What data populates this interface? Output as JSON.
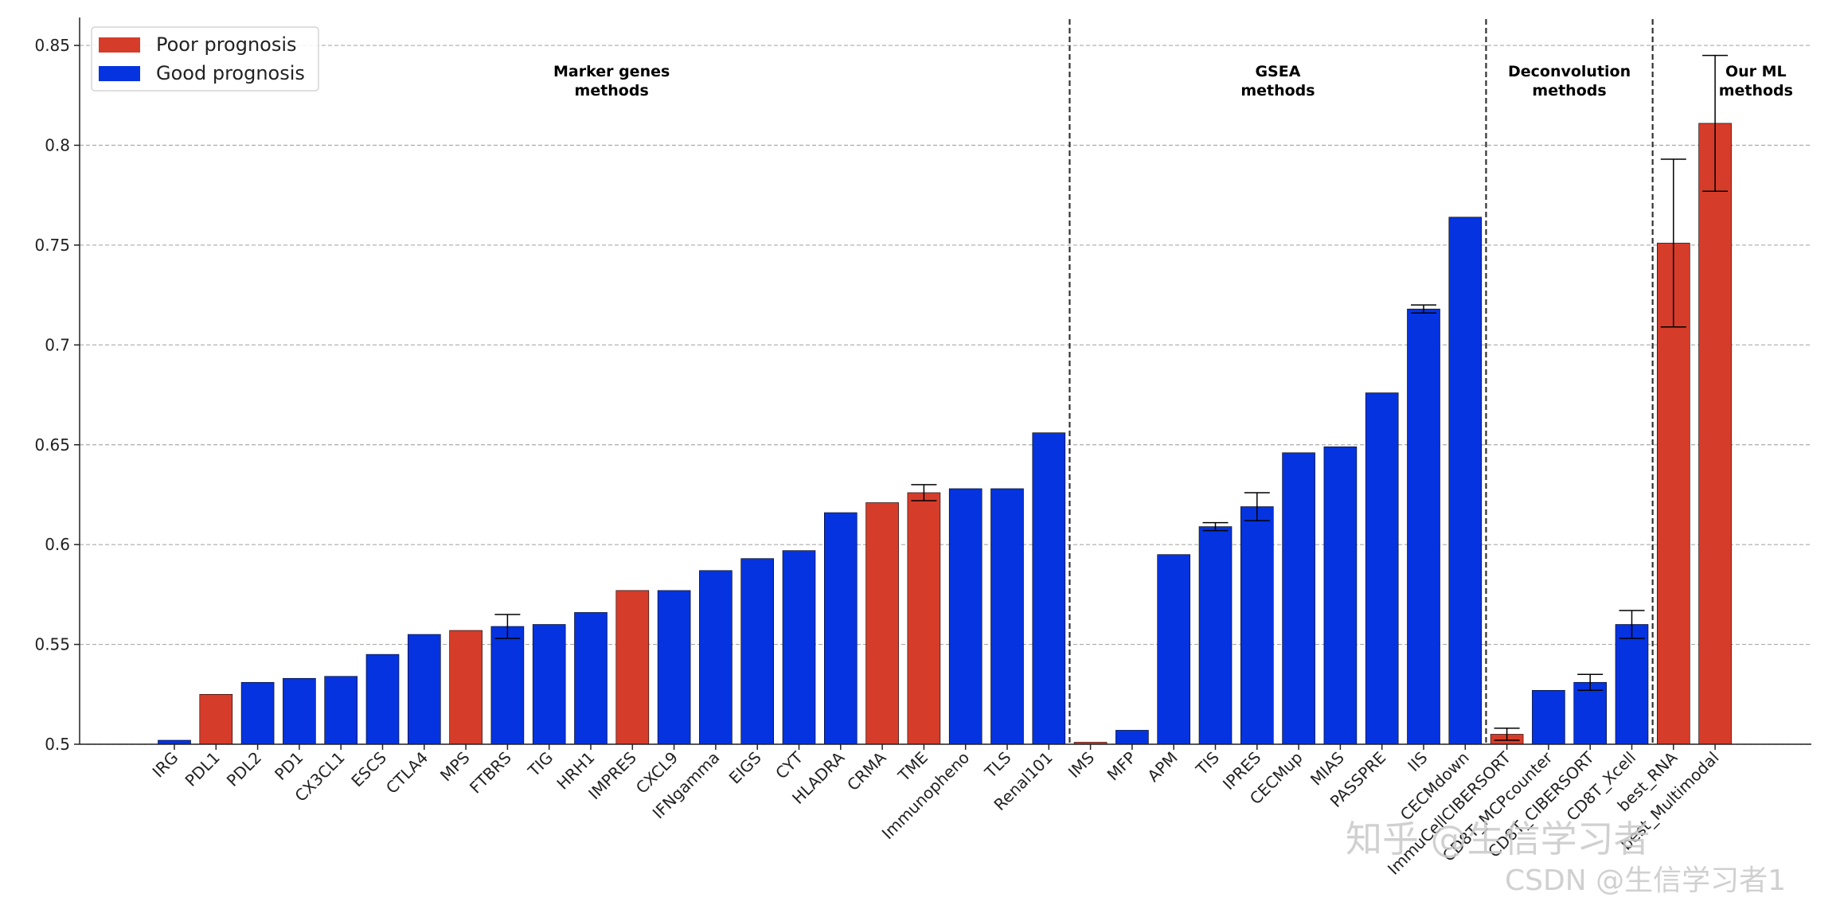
{
  "chart_data": {
    "type": "bar",
    "categories": [
      "IRG",
      "PDL1",
      "PDL2",
      "PD1",
      "CX3CL1",
      "ESCS",
      "CTLA4",
      "MPS",
      "FTBRS",
      "TIG",
      "HRH1",
      "IMPRES",
      "CXCL9",
      "IFNgamma",
      "EIGS",
      "CYT",
      "HLADRA",
      "CRMA",
      "TME",
      "Immunopheno",
      "TLS",
      "Renal101",
      "IMS",
      "MFP",
      "APM",
      "TIS",
      "IPRES",
      "CECMup",
      "MIAS",
      "PASSPRE",
      "IIS",
      "CECMdown",
      "ImmuCellCIBERSORT",
      "CD8T_MCPcounter",
      "CD8T_CIBERSORT",
      "CD8T_Xcell",
      "best_RNA",
      "best_Multimodal"
    ],
    "values": [
      0.502,
      0.525,
      0.531,
      0.533,
      0.534,
      0.545,
      0.555,
      0.557,
      0.559,
      0.56,
      0.566,
      0.577,
      0.577,
      0.587,
      0.593,
      0.597,
      0.616,
      0.621,
      0.626,
      0.628,
      0.628,
      0.656,
      0.501,
      0.507,
      0.595,
      0.609,
      0.619,
      0.646,
      0.649,
      0.676,
      0.718,
      0.764,
      0.505,
      0.527,
      0.531,
      0.56,
      0.751,
      0.811
    ],
    "errors": [
      null,
      null,
      null,
      null,
      null,
      null,
      null,
      null,
      0.006,
      null,
      null,
      null,
      null,
      null,
      null,
      null,
      null,
      null,
      0.004,
      null,
      null,
      null,
      null,
      null,
      null,
      0.002,
      0.007,
      null,
      null,
      null,
      0.002,
      null,
      0.003,
      null,
      0.004,
      0.007,
      0.042,
      0.034
    ],
    "colors": [
      "#0433df",
      "#d63c2a",
      "#0433df",
      "#0433df",
      "#0433df",
      "#0433df",
      "#0433df",
      "#d63c2a",
      "#0433df",
      "#0433df",
      "#0433df",
      "#d63c2a",
      "#0433df",
      "#0433df",
      "#0433df",
      "#0433df",
      "#0433df",
      "#d63c2a",
      "#d63c2a",
      "#0433df",
      "#0433df",
      "#0433df",
      "#d63c2a",
      "#0433df",
      "#0433df",
      "#0433df",
      "#0433df",
      "#0433df",
      "#0433df",
      "#0433df",
      "#0433df",
      "#0433df",
      "#d63c2a",
      "#0433df",
      "#0433df",
      "#0433df",
      "#d63c2a",
      "#d63c2a"
    ],
    "legend": [
      {
        "name": "Poor prognosis",
        "color": "#d63c2a"
      },
      {
        "name": "Good prognosis",
        "color": "#0433df"
      }
    ],
    "legend_position": "upper left",
    "sections": [
      {
        "label": [
          "Marker genes",
          "methods"
        ],
        "bars": 22
      },
      {
        "label": [
          "GSEA",
          "methods"
        ],
        "bars": 10
      },
      {
        "label": [
          "Deconvolution",
          "methods"
        ],
        "bars": 4
      },
      {
        "label": [
          "Our ML",
          "methods"
        ],
        "bars": 2
      }
    ],
    "ylim": [
      0.5,
      0.86
    ],
    "yticks": [
      0.5,
      0.55,
      0.6,
      0.65,
      0.7,
      0.75,
      0.8,
      0.85
    ],
    "grid": true
  },
  "watermark": [
    "知乎 @生信学习者",
    "CSDN @生信学习者1"
  ]
}
